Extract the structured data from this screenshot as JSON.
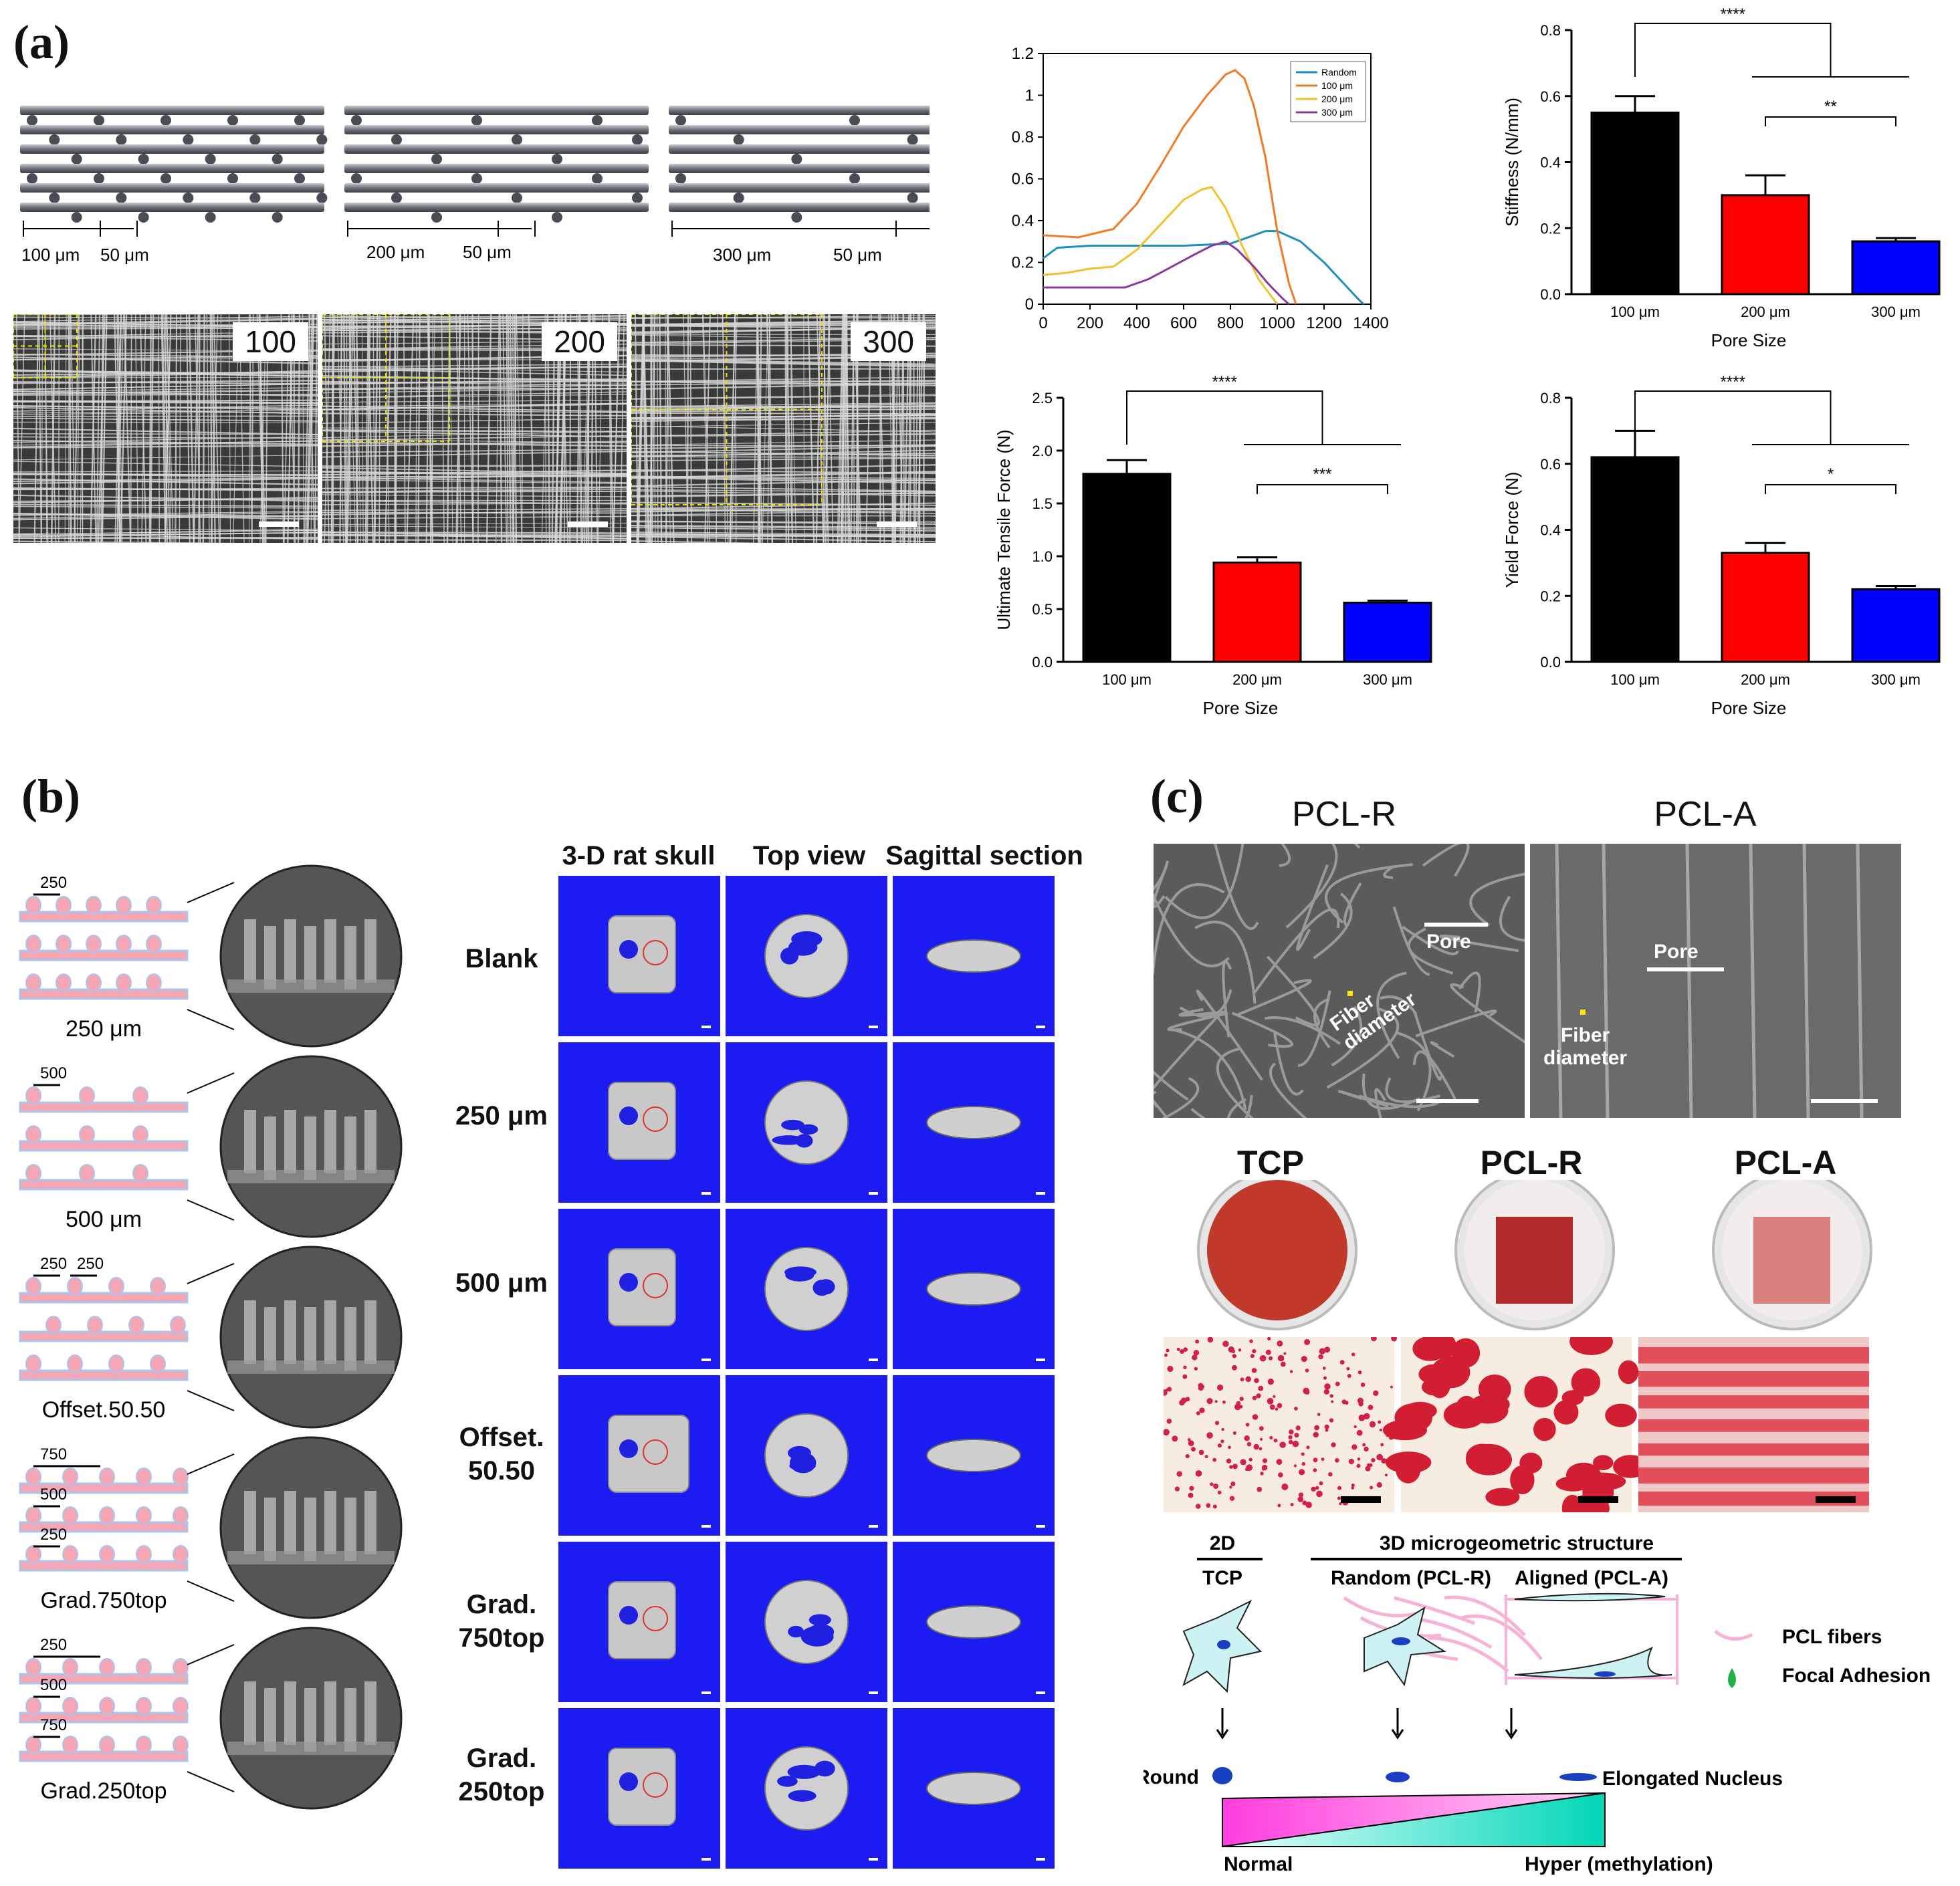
{
  "panels": {
    "a": "(a)",
    "b": "(b)",
    "c": "(c)"
  },
  "a": {
    "schematic_labels": [
      {
        "pore": "100 μm",
        "gap": "50 μm"
      },
      {
        "pore": "200 μm",
        "gap": "50 μm"
      },
      {
        "pore": "300 μm",
        "gap": "50 μm"
      }
    ],
    "sem_labels": [
      "100",
      "200",
      "300"
    ]
  },
  "b": {
    "column_headers": [
      "3-D rat skull",
      "Top view",
      "Sagittal section"
    ],
    "row_labels": [
      "Blank",
      "250 μm",
      "500 μm",
      "Offset.\n50.50",
      "Grad.\n750top",
      "Grad.\n250top"
    ],
    "schematics": [
      {
        "caption": "250 μm",
        "dims": [
          "250"
        ]
      },
      {
        "caption": "500 μm",
        "dims": [
          "500"
        ]
      },
      {
        "caption": "Offset.50.50",
        "dims": [
          "250",
          "250"
        ]
      },
      {
        "caption": "Grad.750top",
        "dims": [
          "750",
          "500",
          "250"
        ]
      },
      {
        "caption": "Grad.250top",
        "dims": [
          "250",
          "500",
          "750"
        ]
      }
    ],
    "colors": {
      "background": "#1b1bf2",
      "fiber_pink": "#f4a6b4",
      "fiber_blue": "#a9c7ee"
    }
  },
  "c": {
    "sem_titles": [
      "PCL-R",
      "PCL-A"
    ],
    "sem_annotations": {
      "pore": "Pore",
      "fiber": "Fiber\ndiameter"
    },
    "dish_titles": [
      "TCP",
      "PCL-R",
      "PCL-A"
    ],
    "diagram": {
      "header_2d": "2D",
      "header_3d": "3D microgeometric structure",
      "col_labels": [
        "TCP",
        "Random (PCL-R)",
        "Aligned (PCL-A)"
      ],
      "legend": [
        "PCL fibers",
        "Focal Adhesion"
      ],
      "nucleus_left": "Round",
      "nucleus_right": "Elongated Nucleus",
      "meth_left": "Normal",
      "meth_right": "Hyper (methylation)"
    }
  },
  "chart_data": [
    {
      "type": "line",
      "x_ticks": [
        0,
        200,
        400,
        600,
        800,
        1000,
        1200,
        1400
      ],
      "y_ticks": [
        0,
        0.2,
        0.4,
        0.6,
        0.8,
        1,
        1.2
      ],
      "xlim": [
        0,
        1400
      ],
      "ylim": [
        0,
        1.2
      ],
      "legend": [
        "Random",
        "100 μm",
        "200 μm",
        "300 μm"
      ],
      "series": [
        {
          "name": "Random",
          "color": "#1f8fc0",
          "points": [
            [
              0,
              0.22
            ],
            [
              60,
              0.27
            ],
            [
              200,
              0.28
            ],
            [
              400,
              0.28
            ],
            [
              600,
              0.28
            ],
            [
              800,
              0.29
            ],
            [
              900,
              0.33
            ],
            [
              950,
              0.35
            ],
            [
              1000,
              0.35
            ],
            [
              1100,
              0.3
            ],
            [
              1200,
              0.2
            ],
            [
              1300,
              0.08
            ],
            [
              1350,
              0.02
            ],
            [
              1370,
              0
            ]
          ]
        },
        {
          "name": "100 μm",
          "color": "#f07a2a",
          "points": [
            [
              0,
              0.33
            ],
            [
              150,
              0.32
            ],
            [
              300,
              0.36
            ],
            [
              400,
              0.48
            ],
            [
              500,
              0.66
            ],
            [
              600,
              0.85
            ],
            [
              700,
              1.0
            ],
            [
              780,
              1.1
            ],
            [
              820,
              1.12
            ],
            [
              860,
              1.08
            ],
            [
              900,
              0.95
            ],
            [
              950,
              0.7
            ],
            [
              1000,
              0.35
            ],
            [
              1050,
              0.1
            ],
            [
              1080,
              0
            ]
          ]
        },
        {
          "name": "200 μm",
          "color": "#f2c12e",
          "points": [
            [
              0,
              0.14
            ],
            [
              100,
              0.15
            ],
            [
              200,
              0.17
            ],
            [
              300,
              0.18
            ],
            [
              400,
              0.26
            ],
            [
              500,
              0.38
            ],
            [
              600,
              0.5
            ],
            [
              680,
              0.55
            ],
            [
              720,
              0.56
            ],
            [
              780,
              0.46
            ],
            [
              850,
              0.28
            ],
            [
              920,
              0.12
            ],
            [
              980,
              0.03
            ],
            [
              1000,
              0
            ]
          ]
        },
        {
          "name": "300 μm",
          "color": "#8a3a9c",
          "points": [
            [
              0,
              0.08
            ],
            [
              200,
              0.08
            ],
            [
              350,
              0.08
            ],
            [
              450,
              0.12
            ],
            [
              550,
              0.18
            ],
            [
              650,
              0.24
            ],
            [
              720,
              0.28
            ],
            [
              780,
              0.3
            ],
            [
              830,
              0.26
            ],
            [
              900,
              0.18
            ],
            [
              960,
              0.1
            ],
            [
              1020,
              0.03
            ],
            [
              1050,
              0
            ]
          ]
        }
      ]
    },
    {
      "type": "bar",
      "categories": [
        "100 μm",
        "200 μm",
        "300 μm"
      ],
      "values": [
        0.55,
        0.3,
        0.16
      ],
      "errors": [
        0.05,
        0.06,
        0.01
      ],
      "colors": [
        "#000000",
        "#ff0000",
        "#0000ff"
      ],
      "ylabel": "Stiffness (N/mm)",
      "xlabel": "Pore Size",
      "ylim": [
        0,
        0.8
      ],
      "y_ticks": [
        "0.0",
        "0.2",
        "0.4",
        "0.6",
        "0.8"
      ],
      "sig_top": "****",
      "sig_bottom": "**"
    },
    {
      "type": "bar",
      "categories": [
        "100 μm",
        "200 μm",
        "300 μm"
      ],
      "values": [
        1.78,
        0.94,
        0.56
      ],
      "errors": [
        0.13,
        0.05,
        0.02
      ],
      "colors": [
        "#000000",
        "#ff0000",
        "#0000ff"
      ],
      "ylabel": "Ultimate Tensile Force (N)",
      "xlabel": "Pore Size",
      "ylim": [
        0,
        2.5
      ],
      "y_ticks": [
        "0.0",
        "0.5",
        "1.0",
        "1.5",
        "2.0",
        "2.5"
      ],
      "sig_top": "****",
      "sig_bottom": "***"
    },
    {
      "type": "bar",
      "categories": [
        "100 μm",
        "200 μm",
        "300 μm"
      ],
      "values": [
        0.62,
        0.33,
        0.22
      ],
      "errors": [
        0.08,
        0.03,
        0.01
      ],
      "colors": [
        "#000000",
        "#ff0000",
        "#0000ff"
      ],
      "ylabel": "Yield Force (N)",
      "xlabel": "Pore Size",
      "ylim": [
        0,
        0.8
      ],
      "y_ticks": [
        "0.0",
        "0.2",
        "0.4",
        "0.6",
        "0.8"
      ],
      "sig_top": "****",
      "sig_bottom": "*"
    }
  ]
}
